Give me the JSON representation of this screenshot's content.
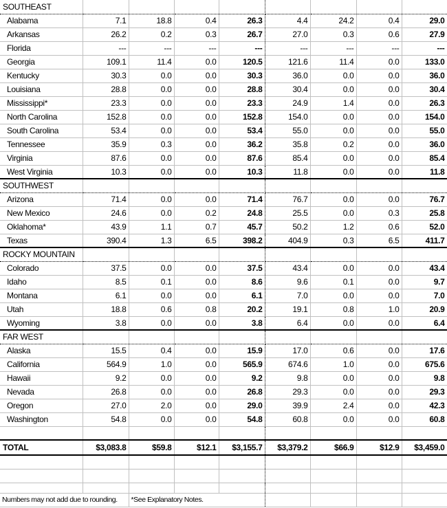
{
  "sections": [
    {
      "title": "SOUTHEAST",
      "rows": [
        {
          "name": "Alabama",
          "values": [
            "7.1",
            "18.8",
            "0.4",
            "26.3",
            "4.4",
            "24.2",
            "0.4",
            "29.0"
          ]
        },
        {
          "name": "Arkansas",
          "values": [
            "26.2",
            "0.2",
            "0.3",
            "26.7",
            "27.0",
            "0.3",
            "0.6",
            "27.9"
          ]
        },
        {
          "name": "Florida",
          "values": [
            "---",
            "---",
            "---",
            "---",
            "---",
            "---",
            "---",
            "---"
          ]
        },
        {
          "name": "Georgia",
          "values": [
            "109.1",
            "11.4",
            "0.0",
            "120.5",
            "121.6",
            "11.4",
            "0.0",
            "133.0"
          ]
        },
        {
          "name": "Kentucky",
          "values": [
            "30.3",
            "0.0",
            "0.0",
            "30.3",
            "36.0",
            "0.0",
            "0.0",
            "36.0"
          ]
        },
        {
          "name": "Louisiana",
          "values": [
            "28.8",
            "0.0",
            "0.0",
            "28.8",
            "30.4",
            "0.0",
            "0.0",
            "30.4"
          ]
        },
        {
          "name": "Mississippi*",
          "values": [
            "23.3",
            "0.0",
            "0.0",
            "23.3",
            "24.9",
            "1.4",
            "0.0",
            "26.3"
          ]
        },
        {
          "name": "North Carolina",
          "values": [
            "152.8",
            "0.0",
            "0.0",
            "152.8",
            "154.0",
            "0.0",
            "0.0",
            "154.0"
          ]
        },
        {
          "name": "South Carolina",
          "values": [
            "53.4",
            "0.0",
            "0.0",
            "53.4",
            "55.0",
            "0.0",
            "0.0",
            "55.0"
          ]
        },
        {
          "name": "Tennessee",
          "values": [
            "35.9",
            "0.3",
            "0.0",
            "36.2",
            "35.8",
            "0.2",
            "0.0",
            "36.0"
          ]
        },
        {
          "name": "Virginia",
          "values": [
            "87.6",
            "0.0",
            "0.0",
            "87.6",
            "85.4",
            "0.0",
            "0.0",
            "85.4"
          ]
        },
        {
          "name": "West Virginia",
          "values": [
            "10.3",
            "0.0",
            "0.0",
            "10.3",
            "11.8",
            "0.0",
            "0.0",
            "11.8"
          ]
        }
      ]
    },
    {
      "title": "SOUTHWEST",
      "rows": [
        {
          "name": "Arizona",
          "values": [
            "71.4",
            "0.0",
            "0.0",
            "71.4",
            "76.7",
            "0.0",
            "0.0",
            "76.7"
          ]
        },
        {
          "name": "New Mexico",
          "values": [
            "24.6",
            "0.0",
            "0.2",
            "24.8",
            "25.5",
            "0.0",
            "0.3",
            "25.8"
          ]
        },
        {
          "name": "Oklahoma*",
          "values": [
            "43.9",
            "1.1",
            "0.7",
            "45.7",
            "50.2",
            "1.2",
            "0.6",
            "52.0"
          ]
        },
        {
          "name": "Texas",
          "values": [
            "390.4",
            "1.3",
            "6.5",
            "398.2",
            "404.9",
            "0.3",
            "6.5",
            "411.7"
          ]
        }
      ]
    },
    {
      "title": "ROCKY MOUNTAIN",
      "rows": [
        {
          "name": "Colorado",
          "values": [
            "37.5",
            "0.0",
            "0.0",
            "37.5",
            "43.4",
            "0.0",
            "0.0",
            "43.4"
          ]
        },
        {
          "name": "Idaho",
          "values": [
            "8.5",
            "0.1",
            "0.0",
            "8.6",
            "9.6",
            "0.1",
            "0.0",
            "9.7"
          ]
        },
        {
          "name": "Montana",
          "values": [
            "6.1",
            "0.0",
            "0.0",
            "6.1",
            "7.0",
            "0.0",
            "0.0",
            "7.0"
          ]
        },
        {
          "name": "Utah",
          "values": [
            "18.8",
            "0.6",
            "0.8",
            "20.2",
            "19.1",
            "0.8",
            "1.0",
            "20.9"
          ]
        },
        {
          "name": "Wyoming",
          "values": [
            "3.8",
            "0.0",
            "0.0",
            "3.8",
            "6.4",
            "0.0",
            "0.0",
            "6.4"
          ]
        }
      ]
    },
    {
      "title": "FAR WEST",
      "rows": [
        {
          "name": "Alaska",
          "values": [
            "15.5",
            "0.4",
            "0.0",
            "15.9",
            "17.0",
            "0.6",
            "0.0",
            "17.6"
          ]
        },
        {
          "name": "California",
          "values": [
            "564.9",
            "1.0",
            "0.0",
            "565.9",
            "674.6",
            "1.0",
            "0.0",
            "675.6"
          ]
        },
        {
          "name": "Hawaii",
          "values": [
            "9.2",
            "0.0",
            "0.0",
            "9.2",
            "9.8",
            "0.0",
            "0.0",
            "9.8"
          ]
        },
        {
          "name": "Nevada",
          "values": [
            "26.8",
            "0.0",
            "0.0",
            "26.8",
            "29.3",
            "0.0",
            "0.0",
            "29.3"
          ]
        },
        {
          "name": "Oregon",
          "values": [
            "27.0",
            "2.0",
            "0.0",
            "29.0",
            "39.9",
            "2.4",
            "0.0",
            "42.3"
          ]
        },
        {
          "name": "Washington",
          "values": [
            "54.8",
            "0.0",
            "0.0",
            "54.8",
            "60.8",
            "0.0",
            "0.0",
            "60.8"
          ]
        }
      ]
    }
  ],
  "total": {
    "name": "TOTAL",
    "values": [
      "$3,083.8",
      "$59.8",
      "$12.1",
      "$3,155.7",
      "$3,379.2",
      "$66.9",
      "$12.9",
      "$3,459.0"
    ]
  },
  "footnotes": [
    "Numbers may not add due to rounding.",
    "*See Explanatory Notes."
  ]
}
